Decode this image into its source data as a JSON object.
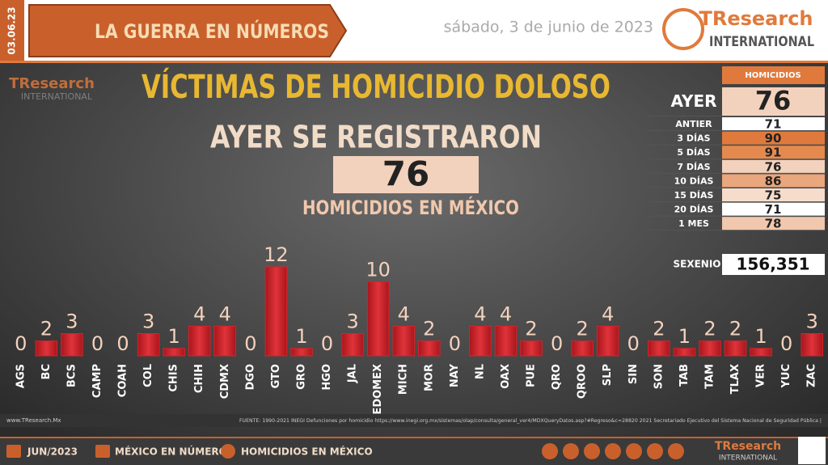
{
  "header": {
    "date_badge": "03.06.23",
    "banner": "LA GUERRA EN NÚMEROS",
    "date": "sábado, 3 de junio de 2023",
    "logo_main": "TResearch",
    "logo_sub": "INTERNATIONAL"
  },
  "headline": {
    "title": "VÍCTIMAS DE HOMICIDIO DOLOSO",
    "line1": "AYER SE REGISTRARON",
    "value": 76,
    "line2": "HOMICIDIOS EN MÉXICO"
  },
  "summary": {
    "header": "HOMICIDIOS",
    "rows": [
      {
        "label": "AYER",
        "value": 76,
        "color": "#f3d2bd"
      },
      {
        "label": "ANTIER",
        "value": 71,
        "color": "#ffffff"
      },
      {
        "label": "3 DÍAS",
        "value": 90,
        "color": "#e07a3c"
      },
      {
        "label": "5 DÍAS",
        "value": 91,
        "color": "#e58a4e"
      },
      {
        "label": "7 DÍAS",
        "value": 76,
        "color": "#f3d2bd"
      },
      {
        "label": "10 DÍAS",
        "value": 86,
        "color": "#eaa67c"
      },
      {
        "label": "15 DÍAS",
        "value": 75,
        "color": "#f6dcca"
      },
      {
        "label": "20 DÍAS",
        "value": 71,
        "color": "#ffffff"
      },
      {
        "label": "1 MES",
        "value": 78,
        "color": "#f1c8ad"
      }
    ],
    "sexenio_label": "SEXENIO",
    "sexenio": "156,351"
  },
  "chart_data": {
    "type": "bar",
    "color": "#d8232a",
    "categories": [
      "AGS",
      "BC",
      "BCS",
      "CAMP",
      "COAH",
      "COL",
      "CHIS",
      "CHIH",
      "CDMX",
      "DGO",
      "GTO",
      "GRO",
      "HGO",
      "JAL",
      "EDOMEX",
      "MICH",
      "MOR",
      "NAY",
      "NL",
      "OAX",
      "PUE",
      "QRO",
      "QROO",
      "SLP",
      "SIN",
      "SON",
      "TAB",
      "TAM",
      "TLAX",
      "VER",
      "YUC",
      "ZAC"
    ],
    "values": [
      0,
      2,
      3,
      0,
      0,
      3,
      1,
      4,
      4,
      0,
      12,
      1,
      0,
      3,
      10,
      4,
      2,
      0,
      4,
      4,
      2,
      0,
      2,
      4,
      0,
      2,
      1,
      2,
      2,
      1,
      0,
      3
    ]
  },
  "footer": {
    "site": "www.TResearch.Mx",
    "source": "FUENTE: 1990-2021 INEGI Defunciones por homicidio https://www.inegi.org.mx/sistemas/olap/consulta/general_ver4/MDXQueryDatos.asp?#Regreso&c=28820  2021 Secretariado Ejecutivo del Sistema Nacional de Seguridad Pública |",
    "tab1": "JUN/2023",
    "tab2": "MÉXICO EN NÚMEROS",
    "tab3": "HOMICIDIOS EN MÉXICO"
  }
}
